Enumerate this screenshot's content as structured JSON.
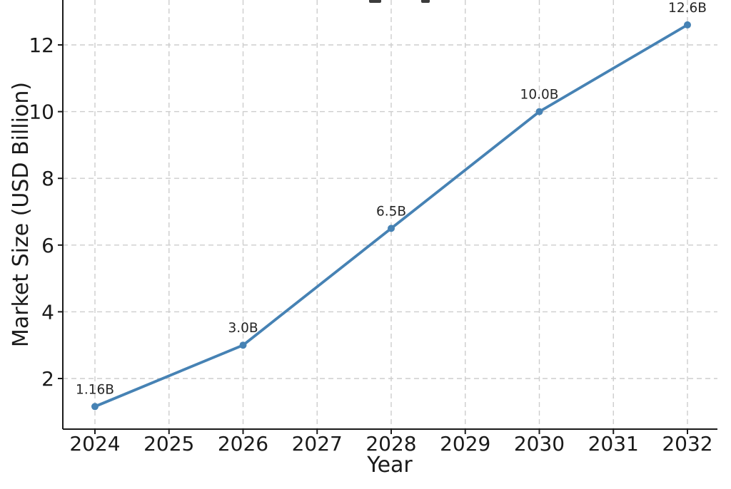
{
  "chart_data": {
    "type": "line",
    "x": [
      2024,
      2026,
      2028,
      2030,
      2032
    ],
    "values": [
      1.16,
      3.0,
      6.5,
      10.0,
      12.6
    ],
    "point_labels": [
      "1.16B",
      "3.0B",
      "6.5B",
      "10.0B",
      "12.6B"
    ],
    "xlabel": "Year",
    "ylabel": "Market Size (USD Billion)",
    "x_ticks": [
      2024,
      2025,
      2026,
      2027,
      2028,
      2029,
      2030,
      2031,
      2032
    ],
    "y_ticks": [
      2,
      4,
      6,
      8,
      10,
      12
    ],
    "xlim": [
      2023.57,
      2032.41
    ],
    "ylim": [
      0.48,
      13.35
    ],
    "grid": true,
    "grid_style": "dashed",
    "legend": "none",
    "title": "",
    "colors": {
      "line": "#4682B4",
      "marker": "#4682B4",
      "grid": "#cdcdcd",
      "axis": "#1a1a1a",
      "tick_text": "#1a1a1a",
      "annotation_text": "#262626",
      "background": "#ffffff"
    }
  }
}
